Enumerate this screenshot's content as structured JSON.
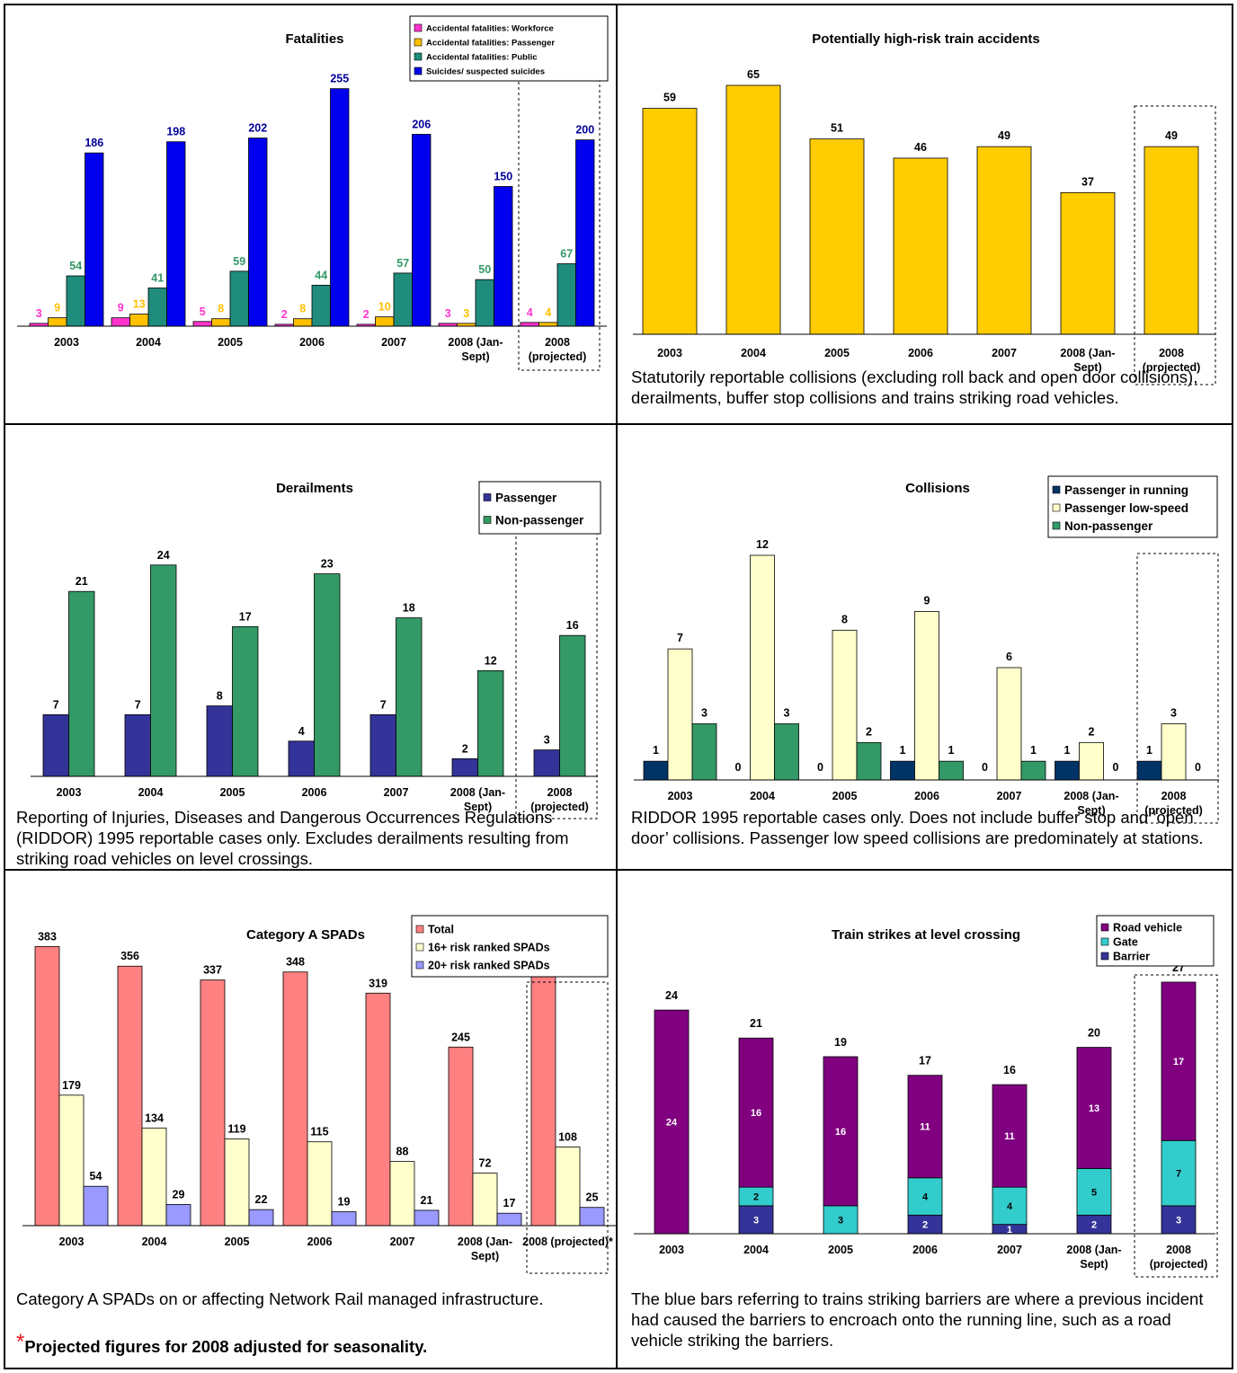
{
  "colors": {
    "magenta": "#ff33cc",
    "gold": "#ffc000",
    "teal": "#1f8c7c",
    "blue": "#0000ee",
    "yellowbar": "#ffcc00",
    "navy": "#333399",
    "green": "#339966",
    "darknavy": "#003366",
    "cream": "#ffffcc",
    "salmon": "#ff8080",
    "lavender": "#9999ff",
    "purple": "#800080",
    "cyan": "#33cccc"
  },
  "notes": {
    "p2": "Statutorily reportable collisions (excluding roll back and open door collisions), derailments, buffer stop collisions and trains striking road vehicles.",
    "p3": "Reporting of Injuries, Diseases and Dangerous Occurrences Regulations (RIDDOR) 1995 reportable cases only.  Excludes derailments resulting from striking road vehicles on level crossings.",
    "p4": " RIDDOR 1995 reportable cases only.  Does not include buffer stop and ‘open door’ collisions.  Passenger low speed collisions are predominately at stations.",
    "p5": "Category A SPADs on or affecting Network Rail managed infrastructure.",
    "p5_asterisk": "*",
    "p5_footnote": "Projected figures for 2008 adjusted for seasonality.",
    "p6": "The blue bars referring to trains striking barriers are where a previous incident had caused the barriers to encroach onto the running line, such as a road vehicle striking the barriers."
  },
  "chart_data": [
    {
      "id": "fatalities",
      "type": "bar",
      "title": "Fatalities",
      "categories": [
        "2003",
        "2004",
        "2005",
        "2006",
        "2007",
        "2008 (Jan-Sept)",
        "2008 (projected)"
      ],
      "ylim": [
        0,
        300
      ],
      "series": [
        {
          "name": "Accidental fatalities: Workforce",
          "color": "#ff33cc",
          "label_color": "#ff33cc",
          "values": [
            3,
            9,
            5,
            2,
            2,
            3,
            4
          ]
        },
        {
          "name": "Accidental fatalities: Passenger",
          "color": "#ffc000",
          "label_color": "#ffc000",
          "values": [
            9,
            13,
            8,
            8,
            10,
            3,
            4
          ]
        },
        {
          "name": "Accidental fatalities: Public",
          "color": "#1f8c7c",
          "label_color": "#339966",
          "values": [
            54,
            41,
            59,
            44,
            57,
            50,
            67
          ]
        },
        {
          "name": "Suicides/ suspected suicides",
          "color": "#0000ee",
          "label_color": "#000099",
          "values": [
            186,
            198,
            202,
            255,
            206,
            150,
            200
          ]
        }
      ]
    },
    {
      "id": "high-risk",
      "type": "bar",
      "title": "Potentially high-risk train accidents",
      "categories": [
        "2003",
        "2004",
        "2005",
        "2006",
        "2007",
        "2008 (Jan-Sept)",
        "2008 (projected)"
      ],
      "ylim": [
        0,
        75
      ],
      "series": [
        {
          "color": "#ffcc00",
          "label_color": "#000000",
          "values": [
            59,
            65,
            51,
            46,
            49,
            37,
            49
          ]
        }
      ]
    },
    {
      "id": "derailments",
      "type": "bar",
      "title": "Derailments",
      "categories": [
        "2003",
        "2004",
        "2005",
        "2006",
        "2007",
        "2008 (Jan-Sept)",
        "2008 (projected)"
      ],
      "ylim": [
        0,
        30
      ],
      "series": [
        {
          "name": "Passenger",
          "color": "#333399",
          "label_color": "#000000",
          "values": [
            7,
            7,
            8,
            4,
            7,
            2,
            3
          ]
        },
        {
          "name": "Non-passenger",
          "color": "#339966",
          "label_color": "#000000",
          "values": [
            21,
            24,
            17,
            23,
            18,
            12,
            16
          ]
        }
      ]
    },
    {
      "id": "collisions",
      "type": "bar",
      "title": "Collisions",
      "categories": [
        "2003",
        "2004",
        "2005",
        "2006",
        "2007",
        "2008 (Jan-Sept)",
        "2008 (projected)"
      ],
      "ylim": [
        0,
        14
      ],
      "series": [
        {
          "name": "Passenger in running",
          "color": "#003366",
          "label_color": "#000000",
          "values": [
            1,
            0,
            0,
            1,
            0,
            1,
            1
          ]
        },
        {
          "name": "Passenger low-speed",
          "color": "#ffffcc",
          "label_color": "#000000",
          "values": [
            7,
            12,
            8,
            9,
            6,
            2,
            3
          ]
        },
        {
          "name": "Non-passenger",
          "color": "#339966",
          "label_color": "#000000",
          "values": [
            3,
            3,
            2,
            1,
            1,
            0,
            0
          ]
        }
      ]
    },
    {
      "id": "spads",
      "type": "bar",
      "title": "Category A SPADs",
      "categories": [
        "2003",
        "2004",
        "2005",
        "2006",
        "2007",
        "2008 (Jan-Sept)",
        "2008 (projected)*"
      ],
      "ylim": [
        0,
        450
      ],
      "series": [
        {
          "name": "Total",
          "color": "#ff8080",
          "label_color": "#000000",
          "values": [
            383,
            356,
            337,
            348,
            319,
            245,
            353
          ]
        },
        {
          "name": "16+ risk ranked SPADs",
          "color": "#ffffcc",
          "label_color": "#000000",
          "values": [
            179,
            134,
            119,
            115,
            88,
            72,
            108
          ]
        },
        {
          "name": "20+ risk ranked SPADs",
          "color": "#9999ff",
          "label_color": "#000000",
          "values": [
            54,
            29,
            22,
            19,
            21,
            17,
            25
          ]
        }
      ]
    },
    {
      "id": "level-crossing",
      "type": "bar",
      "stacked": true,
      "title": "Train strikes at level crossing",
      "categories": [
        "2003",
        "2004",
        "2005",
        "2006",
        "2007",
        "2008 (Jan-Sept)",
        "2008 (projected)"
      ],
      "ylim": [
        0,
        30
      ],
      "totals": [
        24,
        21,
        19,
        17,
        16,
        20,
        27
      ],
      "series": [
        {
          "name": "Road vehicle",
          "color": "#800080",
          "values": [
            24,
            16,
            16,
            11,
            11,
            13,
            17
          ]
        },
        {
          "name": "Gate",
          "color": "#33cccc",
          "values": [
            0,
            2,
            3,
            4,
            4,
            5,
            7
          ]
        },
        {
          "name": "Barrier",
          "color": "#333399",
          "values": [
            0,
            3,
            0,
            2,
            1,
            2,
            3
          ]
        }
      ]
    }
  ]
}
